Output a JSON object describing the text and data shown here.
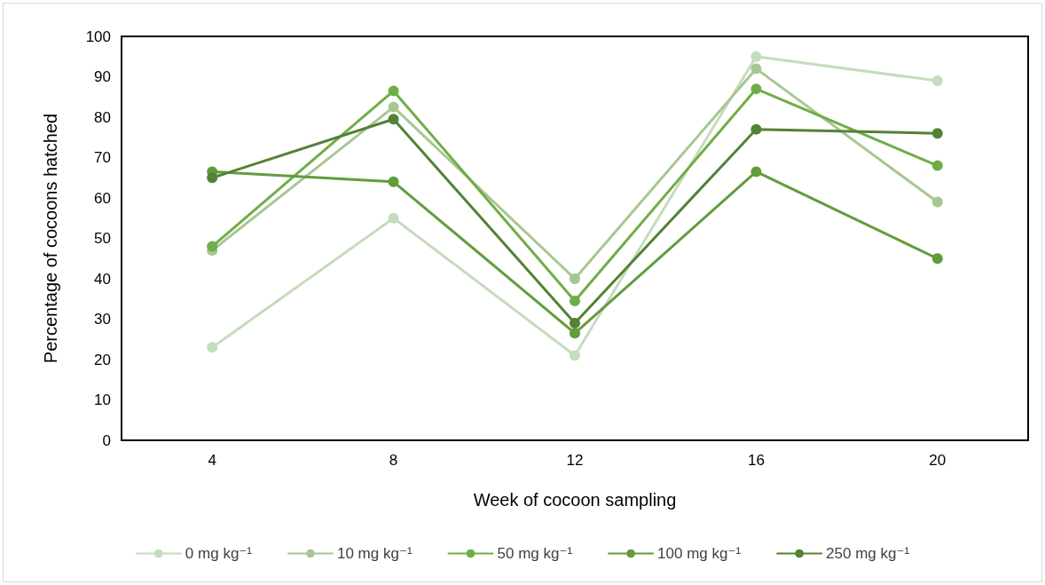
{
  "chart_data": {
    "type": "line",
    "xlabel": "Week of cocoon sampling",
    "ylabel": "Percentage of cocoons hatched",
    "categories": [
      "4",
      "8",
      "12",
      "16",
      "20"
    ],
    "series": [
      {
        "name": "0 mg kg⁻¹",
        "color": "#c5dcbe",
        "values": [
          23,
          55,
          21,
          95,
          89
        ]
      },
      {
        "name": "10 mg kg⁻¹",
        "color": "#a6c794",
        "values": [
          47,
          82.5,
          40,
          92,
          59
        ]
      },
      {
        "name": "50 mg kg⁻¹",
        "color": "#70ad47",
        "values": [
          48,
          86.5,
          34.5,
          87,
          68
        ]
      },
      {
        "name": "100 mg kg⁻¹",
        "color": "#629c3c",
        "values": [
          66.5,
          64,
          26.5,
          66.5,
          45
        ]
      },
      {
        "name": "250 mg kg⁻¹",
        "color": "#548235",
        "values": [
          65,
          79.5,
          29,
          77,
          76
        ]
      }
    ],
    "ylim": [
      0,
      100
    ],
    "yticks": [
      0,
      10,
      20,
      30,
      40,
      50,
      60,
      70,
      80,
      90,
      100
    ],
    "grid": false,
    "legend": "bottom",
    "marker": "circle",
    "line_style": "solid"
  }
}
